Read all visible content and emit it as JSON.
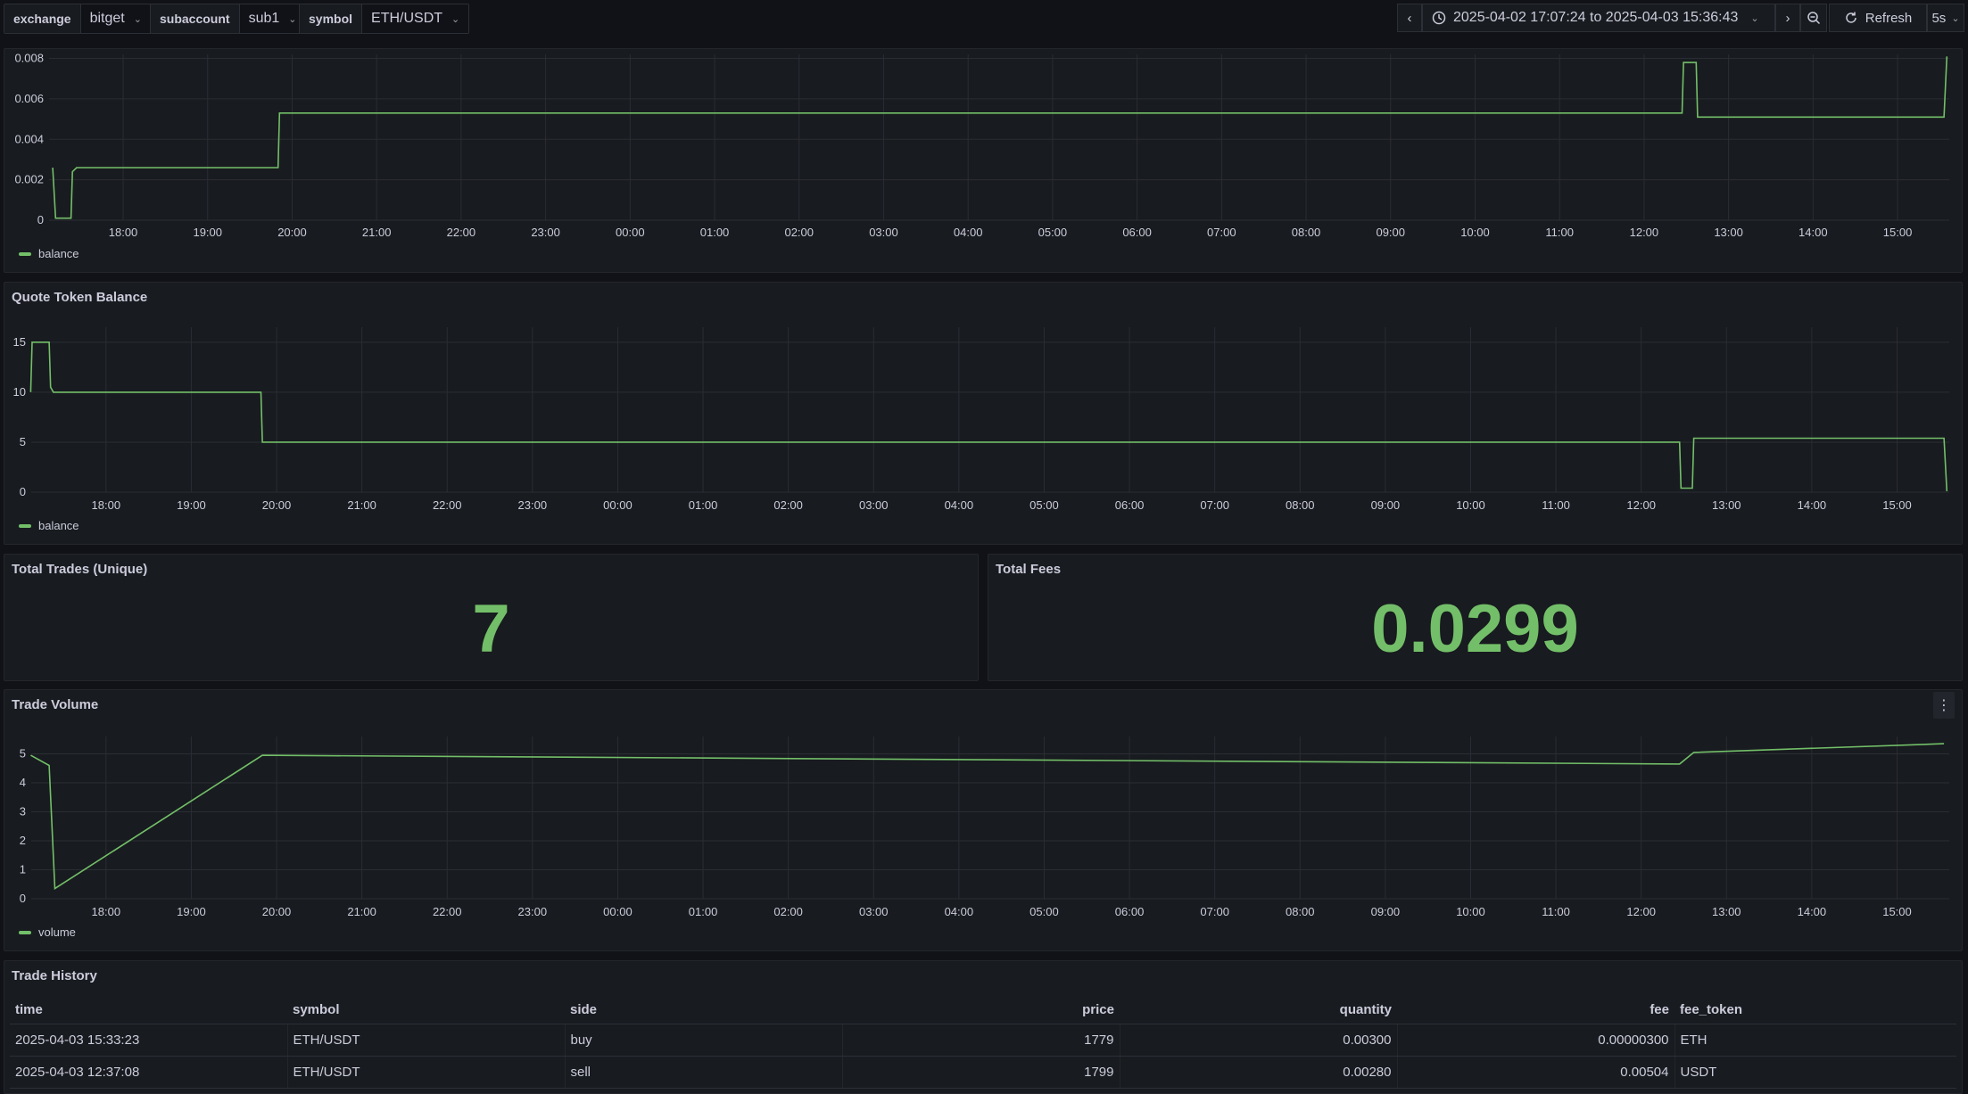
{
  "variables": [
    {
      "label": "exchange",
      "value": "bitget"
    },
    {
      "label": "subaccount",
      "value": "sub1"
    },
    {
      "label": "symbol",
      "value": "ETH/USDT"
    }
  ],
  "time_range": "2025-04-02 17:07:24 to 2025-04-03 15:36:43",
  "refresh": {
    "label": "Refresh",
    "interval": "5s"
  },
  "icons": {
    "prev": "chevron-left-icon",
    "next": "chevron-right-icon",
    "clock": "clock-icon",
    "zoom_out": "zoom-out-icon",
    "refresh": "refresh-icon",
    "menu": "kebab-menu-icon"
  },
  "colors": {
    "series": "#73bf69",
    "background": "#111217",
    "panel": "#181b1f"
  },
  "panels": {
    "base_balance": {
      "title": "",
      "legend": "balance"
    },
    "quote_balance": {
      "title": "Quote Token Balance",
      "legend": "balance"
    },
    "total_trades": {
      "title": "Total Trades (Unique)",
      "value": "7"
    },
    "total_fees": {
      "title": "Total Fees",
      "value": "0.0299"
    },
    "trade_volume": {
      "title": "Trade Volume",
      "legend": "volume"
    },
    "trade_history": {
      "title": "Trade History",
      "columns": [
        "time",
        "symbol",
        "side",
        "price",
        "quantity",
        "fee",
        "fee_token"
      ],
      "rows": [
        [
          "2025-04-03 15:33:23",
          "ETH/USDT",
          "buy",
          "1779",
          "0.00300",
          "0.00000300",
          "ETH"
        ],
        [
          "2025-04-03 12:37:08",
          "ETH/USDT",
          "sell",
          "1799",
          "0.00280",
          "0.00504",
          "USDT"
        ]
      ]
    }
  },
  "chart_data": [
    {
      "type": "line",
      "title": "",
      "series": [
        {
          "name": "balance",
          "points": [
            [
              "2025-04-02 17:10",
              0.0026
            ],
            [
              "2025-04-02 17:12",
              0.0001
            ],
            [
              "2025-04-02 17:23",
              0.0001
            ],
            [
              "2025-04-02 17:24",
              0.0024
            ],
            [
              "2025-04-02 17:27",
              0.0026
            ],
            [
              "2025-04-02 19:50",
              0.0026
            ],
            [
              "2025-04-02 19:51",
              0.0053
            ],
            [
              "2025-04-03 12:27",
              0.0053
            ],
            [
              "2025-04-03 12:28",
              0.0078
            ],
            [
              "2025-04-03 12:37",
              0.0078
            ],
            [
              "2025-04-03 12:38",
              0.0051
            ],
            [
              "2025-04-03 15:33",
              0.0051
            ],
            [
              "2025-04-03 15:35",
              0.0081
            ]
          ]
        }
      ],
      "x_ticks": [
        "18:00",
        "19:00",
        "20:00",
        "21:00",
        "22:00",
        "23:00",
        "00:00",
        "01:00",
        "02:00",
        "03:00",
        "04:00",
        "05:00",
        "06:00",
        "07:00",
        "08:00",
        "09:00",
        "10:00",
        "11:00",
        "12:00",
        "13:00",
        "14:00",
        "15:00"
      ],
      "y_ticks": [
        "0",
        "0.002",
        "0.004",
        "0.006",
        "0.008"
      ],
      "ylim": [
        0,
        0.0082
      ],
      "grid": true,
      "legend": "bottom-left"
    },
    {
      "type": "line",
      "title": "Quote Token Balance",
      "series": [
        {
          "name": "balance",
          "points": [
            [
              "2025-04-02 17:07",
              10
            ],
            [
              "2025-04-02 17:08",
              15
            ],
            [
              "2025-04-02 17:20",
              15
            ],
            [
              "2025-04-02 17:21",
              10.5
            ],
            [
              "2025-04-02 17:23",
              10
            ],
            [
              "2025-04-02 19:49",
              10
            ],
            [
              "2025-04-02 19:50",
              5
            ],
            [
              "2025-04-03 12:27",
              5
            ],
            [
              "2025-04-03 12:28",
              0.4
            ],
            [
              "2025-04-03 12:36",
              0.4
            ],
            [
              "2025-04-03 12:37",
              5.4
            ],
            [
              "2025-04-03 15:33",
              5.4
            ],
            [
              "2025-04-03 15:35",
              0.1
            ]
          ]
        }
      ],
      "x_ticks": [
        "18:00",
        "19:00",
        "20:00",
        "21:00",
        "22:00",
        "23:00",
        "00:00",
        "01:00",
        "02:00",
        "03:00",
        "04:00",
        "05:00",
        "06:00",
        "07:00",
        "08:00",
        "09:00",
        "10:00",
        "11:00",
        "12:00",
        "13:00",
        "14:00",
        "15:00"
      ],
      "y_ticks": [
        "0",
        "5",
        "10",
        "15"
      ],
      "ylim": [
        0,
        16.5
      ],
      "grid": true,
      "legend": "bottom-left"
    },
    {
      "type": "line",
      "title": "Trade Volume",
      "series": [
        {
          "name": "volume",
          "points": [
            [
              "2025-04-02 17:07",
              4.95
            ],
            [
              "2025-04-02 17:20",
              4.6
            ],
            [
              "2025-04-02 17:24",
              0.35
            ],
            [
              "2025-04-02 19:50",
              4.95
            ],
            [
              "2025-04-03 12:27",
              4.65
            ],
            [
              "2025-04-03 12:37",
              5.05
            ],
            [
              "2025-04-03 15:33",
              5.35
            ]
          ]
        }
      ],
      "x_ticks": [
        "18:00",
        "19:00",
        "20:00",
        "21:00",
        "22:00",
        "23:00",
        "00:00",
        "01:00",
        "02:00",
        "03:00",
        "04:00",
        "05:00",
        "06:00",
        "07:00",
        "08:00",
        "09:00",
        "10:00",
        "11:00",
        "12:00",
        "13:00",
        "14:00",
        "15:00"
      ],
      "y_ticks": [
        "0",
        "1",
        "2",
        "3",
        "4",
        "5"
      ],
      "ylim": [
        0,
        5.6
      ],
      "grid": true,
      "legend": "bottom-left"
    }
  ]
}
